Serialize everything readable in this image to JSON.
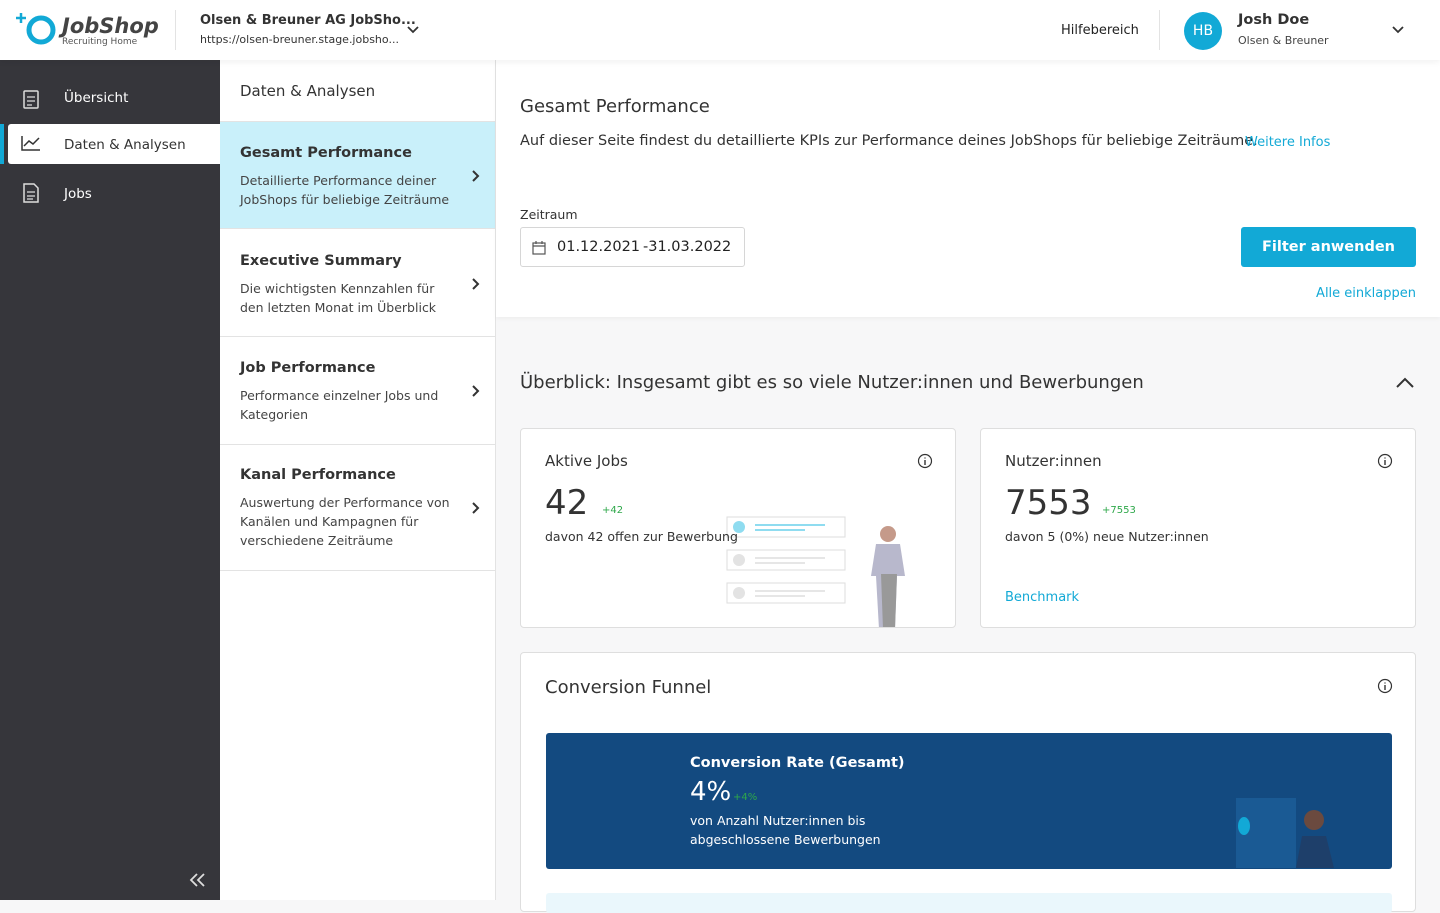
{
  "header": {
    "logo_name": "JobShop",
    "logo_sub": "Recruiting Home",
    "company": "Olsen & Breuner AG JobSho...",
    "url": "https://olsen-breuner.stage.jobsho...",
    "help": "Hilfebereich",
    "user": {
      "initials": "HB",
      "name": "Josh Doe",
      "org": "Olsen & Breuner"
    }
  },
  "sidebar": {
    "items": [
      {
        "label": "Übersicht"
      },
      {
        "label": "Daten & Analysen"
      },
      {
        "label": "Jobs"
      }
    ]
  },
  "subnav": {
    "title": "Daten & Analysen",
    "items": [
      {
        "title": "Gesamt Performance",
        "description": "Detaillierte Performance deiner JobShops für beliebige Zeiträume"
      },
      {
        "title": "Executive Summary",
        "description": "Die wichtigsten Kennzahlen für den letzten Monat im Überblick"
      },
      {
        "title": "Job Performance",
        "description": "Performance einzelner Jobs und Kategorien"
      },
      {
        "title": "Kanal Performance",
        "description": "Auswertung der Performance von Kanälen und Kampagnen für verschiedene Zeiträume"
      }
    ]
  },
  "main": {
    "title": "Gesamt Performance",
    "description": "Auf dieser Seite findest du detaillierte KPIs zur Performance deines JobShops für beliebige Zeiträume.",
    "more_link": "Weitere Infos",
    "period_label": "Zeitraum",
    "date_from": "01.12.2021",
    "date_to": "-31.03.2022",
    "button": "Filter anwenden",
    "collapse_all": "Alle einklappen"
  },
  "overview": {
    "title": "Überblick: Insgesamt gibt es so viele Nutzer:innen und Bewerbungen",
    "cards": [
      {
        "title": "Aktive Jobs",
        "value": 42,
        "delta": "+42",
        "note": "davon 42 offen zur Bewerbung"
      },
      {
        "title": "Nutzer:innen",
        "value": 7553,
        "delta": "+7553",
        "note": "davon 5 (0%) neue Nutzer:innen",
        "link": "Benchmark"
      }
    ]
  },
  "funnel": {
    "title": "Conversion Funnel",
    "rate_title": "Conversion Rate (Gesamt)",
    "rate_value": "4%",
    "rate_delta": "+4%",
    "rate_note": "von Anzahl Nutzer:innen bis abgeschlossene Bewerbungen"
  }
}
